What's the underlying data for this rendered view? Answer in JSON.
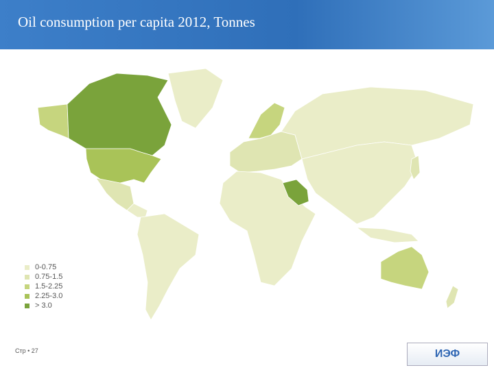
{
  "header": {
    "title": "Oil consumption per capita 2012, Tonnes"
  },
  "legend": [
    {
      "label": "0-0.75",
      "color": "#eaedc8"
    },
    {
      "label": "0.75-1.5",
      "color": "#dfe5b2"
    },
    {
      "label": "1.5-2.25",
      "color": "#c6d57e"
    },
    {
      "label": "2.25-3.0",
      "color": "#a9c358"
    },
    {
      "label": "> 3.0",
      "color": "#7aa33b"
    }
  ],
  "footer": {
    "page": "Стр • 27",
    "logo": "ИЭФ"
  }
}
